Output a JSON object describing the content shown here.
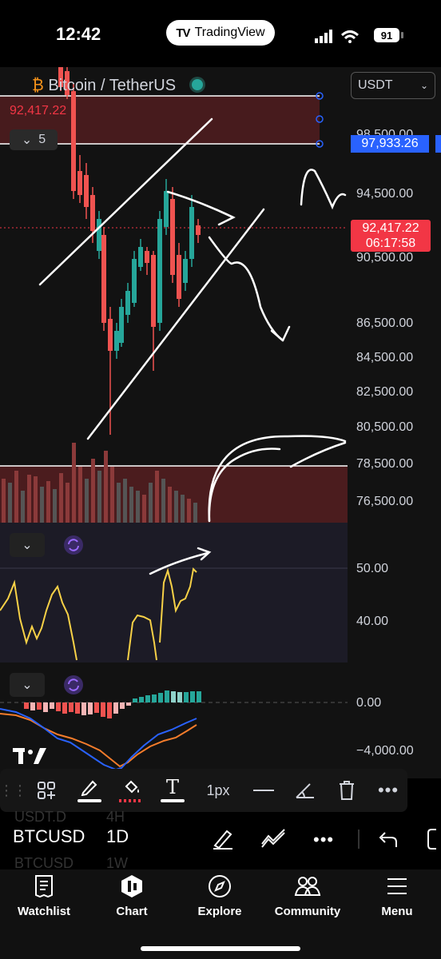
{
  "status": {
    "time": "12:42",
    "app_pill": "TradingView",
    "battery": "91"
  },
  "chart": {
    "symbol_title": "Bitcoin / TetherUS",
    "price_left": "92,417.22",
    "interval_count": "5",
    "currency": "USDT",
    "axis_labels": [
      "98,500.00",
      "94,500.00",
      "90,500.00",
      "86,500.00",
      "84,500.00",
      "82,500.00",
      "80,500.00",
      "78,500.00",
      "76,500.00"
    ],
    "level_tag": "97,933.26",
    "last_price": "92,417.22",
    "countdown": "06:17:58"
  },
  "rsi": {
    "axis_labels": [
      "50.00",
      "40.00"
    ]
  },
  "macd": {
    "axis_labels": [
      "0.00",
      "−4,000.00"
    ]
  },
  "draw_toolbar": {
    "width_label": "1px"
  },
  "symbol_bar": {
    "symbol": "BTCUSD",
    "interval": "1D",
    "ghost_top_symbol": "USDT.D",
    "ghost_top_interval": "4H",
    "ghost_bottom_symbol": "BTCUSD",
    "ghost_bottom_interval": "1W"
  },
  "nav": {
    "watchlist": "Watchlist",
    "chart": "Chart",
    "explore": "Explore",
    "community": "Community",
    "menu": "Menu"
  },
  "colors": {
    "up": "#26a69a",
    "down": "#ef5350",
    "accent": "#2962ff",
    "price_tag": "#f23645",
    "rsi": "#f7d147"
  }
}
